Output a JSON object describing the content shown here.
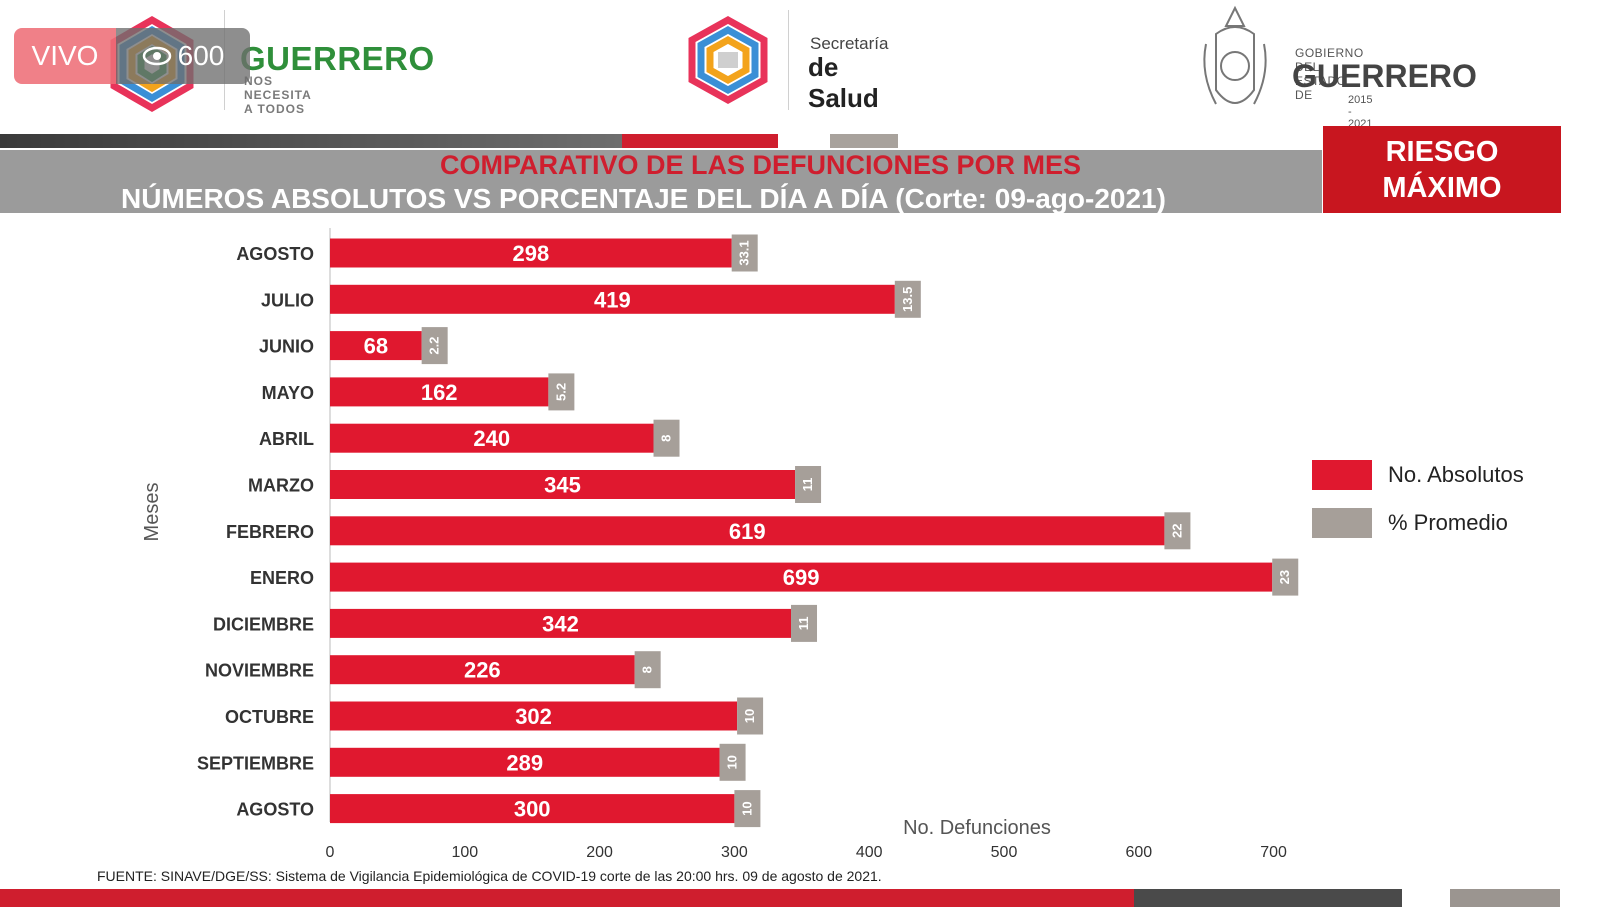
{
  "header": {
    "live": {
      "label": "VIVO",
      "views": "600"
    },
    "guerrero_logo": {
      "word": "GUERRERO",
      "tagline": "NOS NECESITA A TODOS"
    },
    "salud_logo": {
      "line1": "Secretaría",
      "line2": "de Salud"
    },
    "gobierno_logo": {
      "line1": "GOBIERNO DEL ESTADO DE",
      "line2": "GUERRERO",
      "line3": "2015 - 2021"
    }
  },
  "title": {
    "line1": "COMPARATIVO DE LAS DEFUNCIONES POR MES",
    "line2": "NÚMEROS ABSOLUTOS VS PORCENTAJE DEL DÍA A DÍA   (Corte: 09-ago-2021)"
  },
  "risk": {
    "line1": "RIESGO",
    "line2": "MÁXIMO"
  },
  "legend": [
    {
      "label": "No. Absolutos",
      "color": "#e0182f"
    },
    {
      "label": "% Promedio",
      "color": "#a69f99"
    }
  ],
  "source": "FUENTE:  SINAVE/DGE/SS:  Sistema de Vigilancia Epidemiológica de COVID-19 corte de las 20:00 hrs. 09 de agosto de 2021.",
  "colors": {
    "red": "#e0182f",
    "gray": "#a69f99",
    "title_red": "#cf1e2e"
  },
  "chart_data": {
    "type": "bar",
    "orientation": "horizontal",
    "title": "COMPARATIVO DE LAS DEFUNCIONES POR MES",
    "xlabel": "No. Defunciones",
    "ylabel": "Meses",
    "xlim": [
      0,
      700
    ],
    "xticks": [
      0,
      100,
      200,
      300,
      400,
      500,
      600,
      700
    ],
    "categories": [
      "AGOSTO",
      "JULIO",
      "JUNIO",
      "MAYO",
      "ABRIL",
      "MARZO",
      "FEBRERO",
      "ENERO",
      "DICIEMBRE",
      "NOVIEMBRE",
      "OCTUBRE",
      "SEPTIEMBRE",
      "AGOSTO"
    ],
    "series": [
      {
        "name": "No. Absolutos",
        "values": [
          298,
          419,
          68,
          162,
          240,
          345,
          619,
          699,
          342,
          226,
          302,
          289,
          300
        ]
      },
      {
        "name": "% Promedio",
        "values": [
          "33.1",
          "13.5",
          "2.2",
          "5.2",
          "8",
          "11",
          "22",
          "23",
          "11",
          "8",
          "10",
          "10",
          "10"
        ]
      }
    ],
    "legend_position": "right",
    "grid": false
  }
}
